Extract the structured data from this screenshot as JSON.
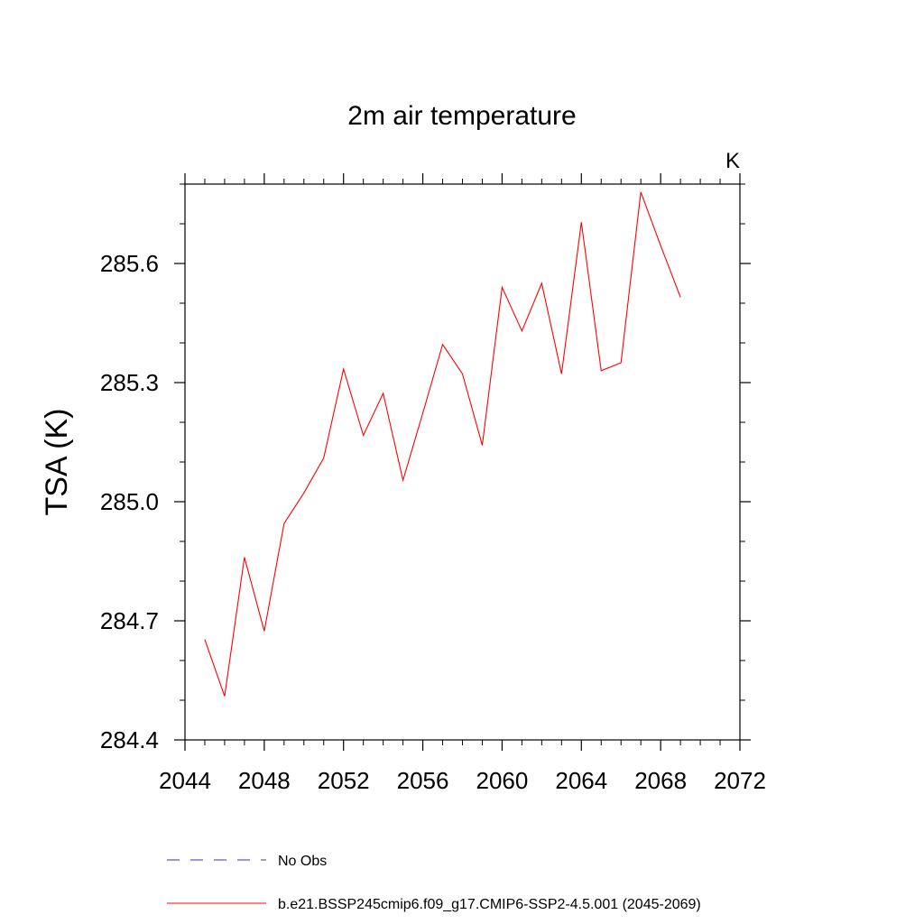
{
  "chart_data": {
    "type": "line",
    "title": "2m air temperature",
    "units": "K",
    "xlabel": "",
    "ylabel": "TSA  (K)",
    "xlim": [
      2044,
      2072
    ],
    "ylim": [
      284.4,
      285.8
    ],
    "x_ticks": [
      2044,
      2048,
      2052,
      2056,
      2060,
      2064,
      2068,
      2072
    ],
    "x_tick_labels": [
      "2044",
      "2048",
      "2052",
      "2056",
      "2060",
      "2064",
      "2068",
      "2072"
    ],
    "x_minor_step": 1,
    "y_ticks": [
      284.4,
      284.7,
      285.0,
      285.3,
      285.6
    ],
    "y_tick_labels": [
      "284.4",
      "284.7",
      "285.0",
      "285.3",
      "285.6"
    ],
    "y_minor_step": 0.1,
    "grid": false,
    "legend_position": "bottom",
    "series": [
      {
        "name": "b.e21.BSSP245cmip6.f09_g17.CMIP6-SSP2-4.5.001 (2045-2069)",
        "color": "#ff0000",
        "style": "solid",
        "x": [
          2045,
          2046,
          2047,
          2048,
          2049,
          2050,
          2051,
          2052,
          2053,
          2054,
          2055,
          2056,
          2057,
          2058,
          2059,
          2060,
          2061,
          2062,
          2063,
          2064,
          2065,
          2066,
          2067,
          2068,
          2069
        ],
        "y": [
          284.653,
          284.51,
          284.86,
          284.674,
          284.945,
          285.022,
          285.11,
          285.334,
          285.167,
          285.273,
          285.054,
          285.223,
          285.396,
          285.322,
          285.142,
          285.54,
          285.43,
          285.55,
          285.322,
          285.704,
          285.33,
          285.35,
          285.78,
          285.645,
          285.515
        ]
      },
      {
        "name": "No Obs",
        "color": "#3a32a8",
        "style": "dashed",
        "x": [],
        "y": []
      }
    ]
  }
}
